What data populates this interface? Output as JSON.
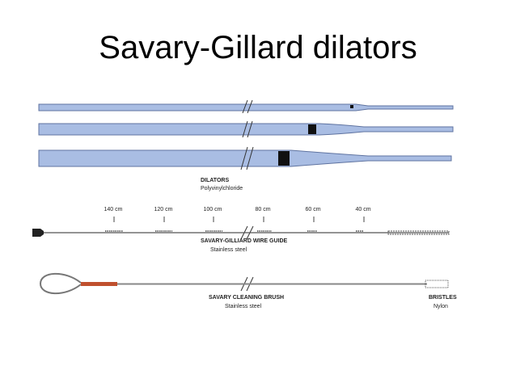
{
  "title": "Savary-Gillard dilators",
  "dilators": {
    "label": "DILATORS",
    "material": "Polyvinylchloride"
  },
  "wire_guide": {
    "markings": [
      "140 cm",
      "120 cm",
      "100 cm",
      "80 cm",
      "60 cm",
      "40 cm"
    ],
    "label": "SAVARY-GILLIARD WIRE GUIDE",
    "material": "Stainless steel"
  },
  "brush": {
    "label": "SAVARY CLEANING BRUSH",
    "material": "Stainless steel"
  },
  "bristles": {
    "label": "BRISTLES",
    "material": "Nylon"
  }
}
